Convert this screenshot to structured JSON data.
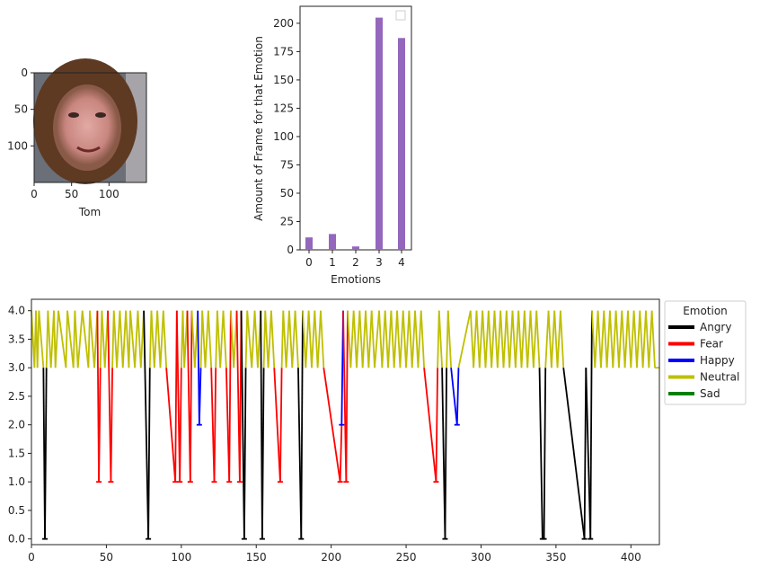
{
  "chart_data": [
    {
      "type": "image",
      "xlabel": "Tom",
      "xticks": [
        0,
        50,
        100
      ],
      "yticks": [
        0,
        50,
        100
      ],
      "x_range": [
        0,
        150
      ],
      "y_range": [
        0,
        150
      ],
      "y_inverted": true
    },
    {
      "type": "bar",
      "categories": [
        "0",
        "1",
        "2",
        "3",
        "4"
      ],
      "values": [
        11,
        14,
        3,
        205,
        187
      ],
      "xlabel": "Emotions",
      "ylabel": "Amount of Frame for that Emotion",
      "yticks": [
        0,
        25,
        50,
        75,
        100,
        125,
        150,
        175,
        200
      ],
      "ylim": [
        0,
        215
      ],
      "bar_color": "#9467bd",
      "legend": "empty box, top-right"
    },
    {
      "type": "line",
      "ylim": [
        -0.1,
        4.2
      ],
      "xlim": [
        0,
        419
      ],
      "xticks": [
        0,
        50,
        100,
        150,
        200,
        250,
        300,
        350,
        400
      ],
      "yticks": [
        "0.0",
        "0.5",
        "1.0",
        "1.5",
        "2.0",
        "2.5",
        "3.0",
        "3.5",
        "4.0"
      ],
      "legend_title": "Emotion",
      "legend_position": "outside right, top",
      "series": [
        {
          "name": "Angry",
          "color": "#000000"
        },
        {
          "name": "Fear",
          "color": "#ff0000"
        },
        {
          "name": "Happy",
          "color": "#0000ff"
        },
        {
          "name": "Neutral",
          "color": "#bfbf00"
        },
        {
          "name": "Sad",
          "color": "#008000"
        }
      ],
      "segments": [
        [
          0,
          4
        ],
        [
          2,
          3
        ],
        [
          3,
          4
        ],
        [
          4,
          3
        ],
        [
          5,
          4
        ],
        [
          8,
          3
        ],
        [
          9,
          0
        ],
        [
          10,
          3
        ],
        [
          11,
          4
        ],
        [
          13,
          3
        ],
        [
          15,
          4
        ],
        [
          16,
          3
        ],
        [
          18,
          4
        ],
        [
          23,
          3
        ],
        [
          24,
          4
        ],
        [
          28,
          3
        ],
        [
          29,
          4
        ],
        [
          31,
          3
        ],
        [
          34,
          4
        ],
        [
          38,
          3
        ],
        [
          39,
          4
        ],
        [
          42,
          3
        ],
        [
          44,
          4
        ],
        [
          45,
          1
        ],
        [
          46,
          3
        ],
        [
          47,
          4
        ],
        [
          49,
          3
        ],
        [
          51,
          4
        ],
        [
          53,
          1
        ],
        [
          54,
          3
        ],
        [
          55,
          4
        ],
        [
          57,
          3
        ],
        [
          59,
          4
        ],
        [
          61,
          3
        ],
        [
          63,
          4
        ],
        [
          65,
          3
        ],
        [
          66,
          4
        ],
        [
          69,
          3
        ],
        [
          71,
          4
        ],
        [
          73,
          3
        ],
        [
          75,
          4
        ],
        [
          78,
          0
        ],
        [
          79,
          3
        ],
        [
          80,
          4
        ],
        [
          82,
          3
        ],
        [
          84,
          4
        ],
        [
          86,
          3
        ],
        [
          88,
          4
        ],
        [
          90,
          3
        ],
        [
          96,
          1
        ],
        [
          97,
          4
        ],
        [
          99,
          1
        ],
        [
          100,
          3
        ],
        [
          101,
          4
        ],
        [
          102,
          3
        ],
        [
          104,
          4
        ],
        [
          106,
          1
        ],
        [
          107,
          4
        ],
        [
          109,
          3
        ],
        [
          111,
          4
        ],
        [
          112,
          2
        ],
        [
          113,
          3
        ],
        [
          114,
          4
        ],
        [
          116,
          3
        ],
        [
          118,
          4
        ],
        [
          120,
          3
        ],
        [
          122,
          1
        ],
        [
          123,
          3
        ],
        [
          124,
          4
        ],
        [
          126,
          3
        ],
        [
          128,
          4
        ],
        [
          130,
          3
        ],
        [
          132,
          1
        ],
        [
          133,
          4
        ],
        [
          135,
          3
        ],
        [
          137,
          4
        ],
        [
          139,
          1
        ],
        [
          140,
          4
        ],
        [
          142,
          0
        ],
        [
          143,
          3
        ],
        [
          144,
          4
        ],
        [
          147,
          3
        ],
        [
          149,
          4
        ],
        [
          151,
          3
        ],
        [
          153,
          4
        ],
        [
          154,
          0
        ],
        [
          155,
          3
        ],
        [
          156,
          4
        ],
        [
          158,
          3
        ],
        [
          160,
          4
        ],
        [
          162,
          3
        ],
        [
          166,
          1
        ],
        [
          167,
          3
        ],
        [
          168,
          4
        ],
        [
          170,
          3
        ],
        [
          172,
          4
        ],
        [
          174,
          3
        ],
        [
          176,
          4
        ],
        [
          178,
          3
        ],
        [
          180,
          0
        ],
        [
          181,
          4
        ],
        [
          183,
          3
        ],
        [
          185,
          4
        ],
        [
          187,
          3
        ],
        [
          189,
          4
        ],
        [
          191,
          3
        ],
        [
          193,
          4
        ],
        [
          195,
          3
        ],
        [
          206,
          1
        ],
        [
          207,
          2
        ],
        [
          208,
          4
        ],
        [
          210,
          1
        ],
        [
          211,
          4
        ],
        [
          213,
          3
        ],
        [
          215,
          4
        ],
        [
          217,
          3
        ],
        [
          219,
          4
        ],
        [
          221,
          3
        ],
        [
          223,
          4
        ],
        [
          225,
          3
        ],
        [
          227,
          4
        ],
        [
          229,
          3
        ],
        [
          232,
          4
        ],
        [
          234,
          3
        ],
        [
          236,
          4
        ],
        [
          238,
          3
        ],
        [
          240,
          4
        ],
        [
          242,
          3
        ],
        [
          244,
          4
        ],
        [
          246,
          3
        ],
        [
          248,
          4
        ],
        [
          250,
          3
        ],
        [
          252,
          4
        ],
        [
          254,
          3
        ],
        [
          256,
          4
        ],
        [
          258,
          3
        ],
        [
          260,
          4
        ],
        [
          262,
          3
        ],
        [
          270,
          1
        ],
        [
          271,
          3
        ],
        [
          272,
          4
        ],
        [
          274,
          3
        ],
        [
          276,
          0
        ],
        [
          277,
          3
        ],
        [
          278,
          4
        ],
        [
          280,
          3
        ],
        [
          284,
          2
        ],
        [
          285,
          3
        ],
        [
          293,
          4
        ],
        [
          295,
          3
        ],
        [
          297,
          4
        ],
        [
          299,
          3
        ],
        [
          301,
          4
        ],
        [
          303,
          3
        ],
        [
          305,
          4
        ],
        [
          307,
          3
        ],
        [
          309,
          4
        ],
        [
          311,
          3
        ],
        [
          313,
          4
        ],
        [
          315,
          3
        ],
        [
          317,
          4
        ],
        [
          319,
          3
        ],
        [
          321,
          4
        ],
        [
          323,
          3
        ],
        [
          325,
          4
        ],
        [
          327,
          3
        ],
        [
          329,
          4
        ],
        [
          331,
          3
        ],
        [
          333,
          4
        ],
        [
          335,
          3
        ],
        [
          337,
          4
        ],
        [
          339,
          3
        ],
        [
          341,
          0
        ],
        [
          342,
          0
        ],
        [
          343,
          3
        ],
        [
          345,
          4
        ],
        [
          347,
          3
        ],
        [
          349,
          4
        ],
        [
          351,
          3
        ],
        [
          353,
          4
        ],
        [
          355,
          3
        ],
        [
          369,
          0
        ],
        [
          370,
          3
        ],
        [
          373,
          0
        ],
        [
          374,
          4
        ],
        [
          376,
          3
        ],
        [
          378,
          4
        ],
        [
          380,
          3
        ],
        [
          382,
          4
        ],
        [
          384,
          3
        ],
        [
          386,
          4
        ],
        [
          388,
          3
        ],
        [
          390,
          4
        ],
        [
          392,
          3
        ],
        [
          394,
          4
        ],
        [
          396,
          3
        ],
        [
          398,
          4
        ],
        [
          400,
          3
        ],
        [
          402,
          4
        ],
        [
          404,
          3
        ],
        [
          406,
          4
        ],
        [
          408,
          3
        ],
        [
          410,
          4
        ],
        [
          412,
          3
        ],
        [
          414,
          4
        ],
        [
          416,
          3
        ],
        [
          419,
          3
        ]
      ]
    }
  ]
}
